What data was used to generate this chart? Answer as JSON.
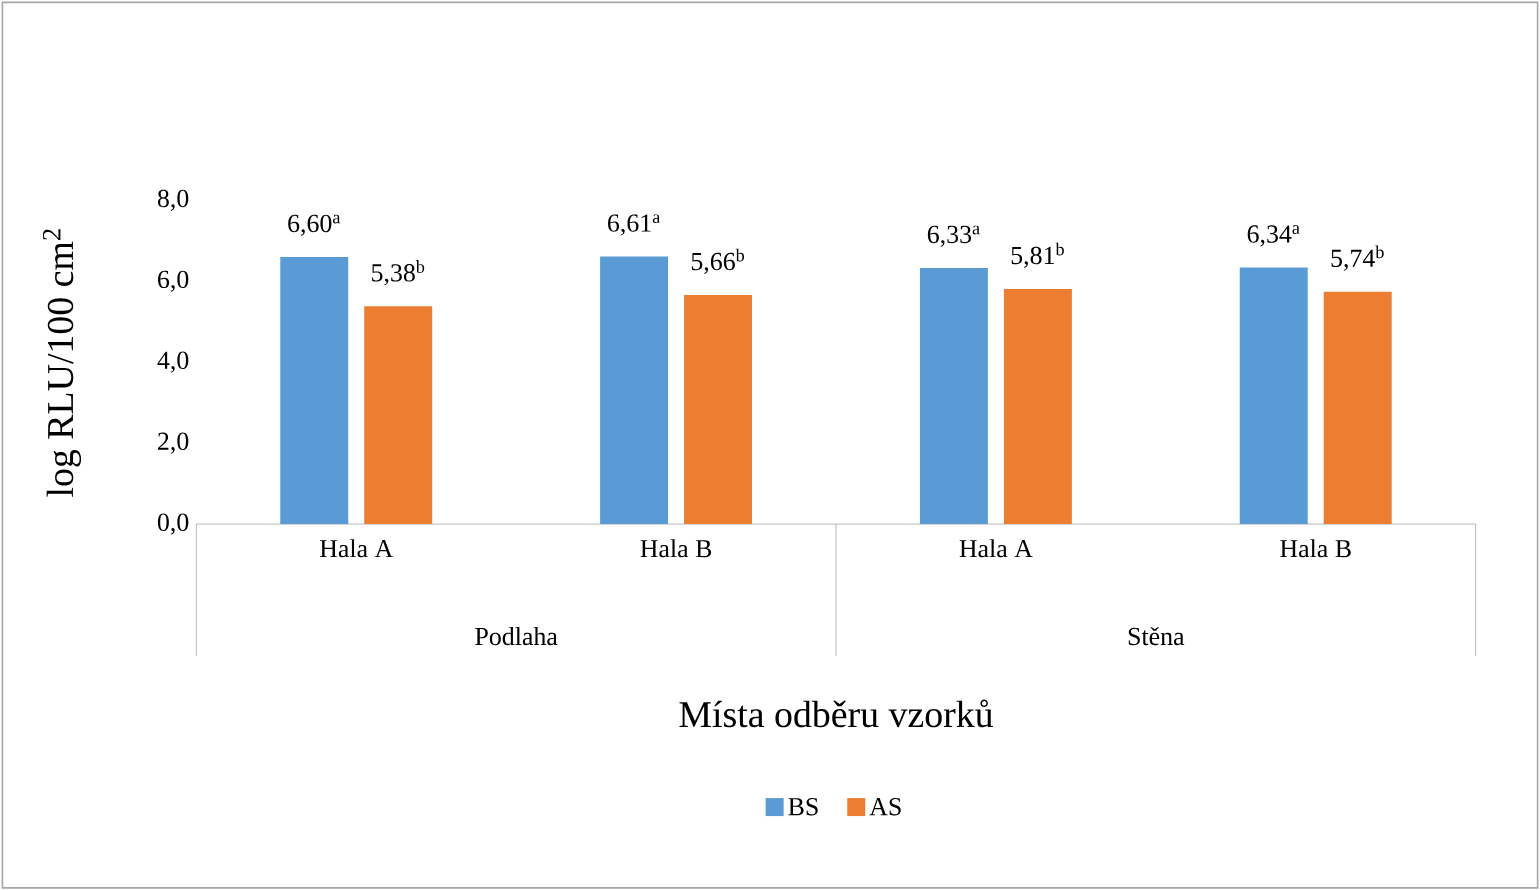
{
  "chart_data": {
    "type": "bar",
    "xlabel": "Místa odběru vzorků",
    "ylabel": "log  RLU/100 cm$^{2}$",
    "categories": [
      "Hala A",
      "Hala B",
      "Hala A",
      "Hala B"
    ],
    "annotations": [
      "Podlaha",
      "Stěna"
    ],
    "series": [
      {
        "name": "BS",
        "color": "#5b9bd5",
        "values": [
          6.6,
          6.61,
          6.33,
          6.34
        ],
        "value_labels": [
          "6,60$^{a}$",
          "6,61$^{a}$",
          "6,33$^{a}$",
          "6,34$^{a}$"
        ]
      },
      {
        "name": "AS",
        "color": "#ed7d31",
        "values": [
          5.38,
          5.66,
          5.81,
          5.74
        ],
        "value_labels": [
          "5,38$^{b}$",
          "5,66$^{b}$",
          "5,81$^{b}$",
          "5,74$^{b}$"
        ]
      }
    ],
    "ylim": [
      0,
      8
    ],
    "yticks": [
      {
        "value": 0,
        "label": "0,0"
      },
      {
        "value": 2,
        "label": "2,0"
      },
      {
        "value": 4,
        "label": "4,0"
      },
      {
        "value": 6,
        "label": "6,0"
      },
      {
        "value": 8,
        "label": "8,0"
      }
    ],
    "legend": "bottom"
  }
}
